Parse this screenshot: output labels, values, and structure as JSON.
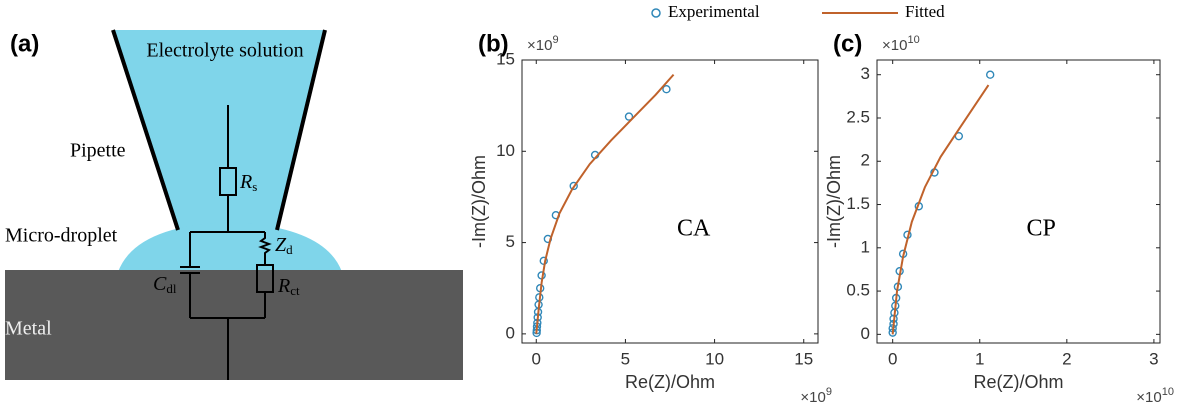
{
  "panel_a": {
    "label": "(a)",
    "top": "Electrolyte solution",
    "pipette": "Pipette",
    "droplet": "Micro-droplet",
    "metal": "Metal",
    "rs": [
      "R",
      "s"
    ],
    "zd": [
      "Z",
      "d"
    ],
    "cdl": [
      "C",
      "dl"
    ],
    "rct": [
      "R",
      "ct"
    ]
  },
  "chart_data": [
    {
      "type": "scatter",
      "panel_label": "(b)",
      "annotation": "CA",
      "x_label": "Re(Z)/Ohm",
      "y_label": "-Im(Z)/Ohm",
      "x_multiplier": [
        "×10",
        "9"
      ],
      "y_multiplier": [
        "×10",
        "9"
      ],
      "xlim": [
        -0.8,
        15.8
      ],
      "ylim": [
        -0.5,
        15
      ],
      "xticks": [
        0,
        5,
        10,
        15
      ],
      "yticks": [
        0,
        5,
        10,
        15
      ],
      "series": [
        {
          "name": "Experimental",
          "kind": "scatter",
          "color": "#2f87b8",
          "x": [
            0.02,
            0.03,
            0.04,
            0.06,
            0.08,
            0.1,
            0.13,
            0.17,
            0.22,
            0.3,
            0.42,
            0.65,
            1.1,
            2.1,
            3.3,
            5.2,
            7.3
          ],
          "values": [
            0.05,
            0.2,
            0.4,
            0.6,
            0.9,
            1.2,
            1.6,
            2.0,
            2.5,
            3.2,
            4.0,
            5.2,
            6.5,
            8.1,
            9.8,
            11.9,
            13.4
          ]
        },
        {
          "name": "Fitted",
          "kind": "line",
          "color": "#c0622b",
          "x": [
            0,
            0.05,
            0.15,
            0.3,
            0.5,
            0.8,
            1.3,
            2,
            3,
            4.2,
            5.5,
            6.7,
            7.7
          ],
          "values": [
            0,
            0.5,
            1.5,
            2.8,
            4,
            5.2,
            6.6,
            7.9,
            9.3,
            10.6,
            11.9,
            13.1,
            14.2
          ]
        }
      ]
    },
    {
      "type": "scatter",
      "panel_label": "(c)",
      "annotation": "CP",
      "x_label": "Re(Z)/Ohm",
      "y_label": "-Im(Z)/Ohm",
      "x_multiplier": [
        "×10",
        "10"
      ],
      "y_multiplier": [
        "×10",
        "10"
      ],
      "xlim": [
        -0.18,
        3.07
      ],
      "ylim": [
        -0.1,
        3.17
      ],
      "xticks": [
        0,
        1,
        2,
        3
      ],
      "yticks": [
        0,
        0.5,
        1,
        1.5,
        2,
        2.5,
        3
      ],
      "series": [
        {
          "kind": "scatter",
          "color": "#2f87b8",
          "x": [
            0,
            0,
            0.01,
            0.01,
            0.02,
            0.03,
            0.04,
            0.06,
            0.08,
            0.12,
            0.17,
            0.3,
            0.48,
            0.76,
            1.12
          ],
          "values": [
            0.02,
            0.07,
            0.12,
            0.18,
            0.25,
            0.33,
            0.42,
            0.55,
            0.73,
            0.93,
            1.15,
            1.48,
            1.87,
            2.29,
            3.0
          ]
        },
        {
          "kind": "line",
          "color": "#c0622b",
          "x": [
            0,
            0.05,
            0.12,
            0.22,
            0.37,
            0.55,
            0.78,
            1.1
          ],
          "values": [
            0,
            0.5,
            0.9,
            1.3,
            1.7,
            2.05,
            2.4,
            2.88
          ]
        }
      ]
    }
  ]
}
